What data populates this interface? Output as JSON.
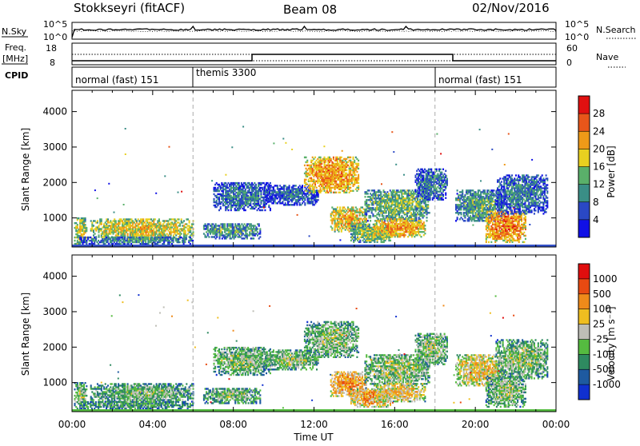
{
  "header": {
    "station": "Stokkseyri (fitACF)",
    "beam": "Beam 08",
    "date": "02/Nov/2016"
  },
  "left_labels": {
    "nsky": "N.Sky",
    "freq_line1": "Freq.",
    "freq_line2": "[MHz]",
    "cpid": "CPID"
  },
  "right_labels": {
    "nsearch": "N.Search",
    "nave": "Nave"
  },
  "noise_ticks": {
    "left_top": "10^5",
    "left_bottom": "10^0",
    "right_top": "10^5",
    "right_bottom": "10^0"
  },
  "freq_ticks": {
    "left_top": "18",
    "left_bottom": "8",
    "right_top": "60",
    "right_bottom": "0"
  },
  "cpid_segments": [
    {
      "label": "normal (fast) 151",
      "start_h": 0,
      "end_h": 6
    },
    {
      "label": "themis 3300",
      "start_h": 6,
      "end_h": 18
    },
    {
      "label": "normal (fast) 151",
      "start_h": 18,
      "end_h": 24
    }
  ],
  "x_axis": {
    "label": "Time UT",
    "ticks": [
      "00:00",
      "04:00",
      "08:00",
      "12:00",
      "16:00",
      "20:00",
      "00:00"
    ],
    "range_h": [
      0,
      24
    ]
  },
  "chart_data": [
    {
      "type": "heatmap",
      "name": "power",
      "ylabel": "Slant Range [km]",
      "y_ticks": [
        "1000",
        "2000",
        "3000",
        "4000"
      ],
      "ylim": [
        180,
        4600
      ],
      "colorbar": {
        "label": "Power [dB]",
        "ticks": [
          "4",
          "8",
          "12",
          "16",
          "20",
          "24",
          "28"
        ],
        "colors": [
          "#1010e6",
          "#2a48c4",
          "#3a8e86",
          "#5ab06a",
          "#e8d020",
          "#ef9a18",
          "#e8561a",
          "#e01010"
        ]
      },
      "regions": [
        {
          "t": [
            0.1,
            0.7
          ],
          "r": [
            250,
            1000
          ],
          "v": 0.55
        },
        {
          "t": [
            0.9,
            6.0
          ],
          "r": [
            400,
            950
          ],
          "v": 0.6
        },
        {
          "t": [
            0.3,
            6.0
          ],
          "r": [
            250,
            450
          ],
          "v": 0.35
        },
        {
          "t": [
            6.5,
            9.3
          ],
          "r": [
            400,
            850
          ],
          "v": 0.4
        },
        {
          "t": [
            7.0,
            9.8
          ],
          "r": [
            1200,
            2000
          ],
          "v": 0.3
        },
        {
          "t": [
            9.5,
            12.2
          ],
          "r": [
            1350,
            1900
          ],
          "v": 0.25
        },
        {
          "t": [
            11.5,
            14.2
          ],
          "r": [
            1700,
            2700
          ],
          "v": 0.72
        },
        {
          "t": [
            12.8,
            14.6
          ],
          "r": [
            600,
            1300
          ],
          "v": 0.65
        },
        {
          "t": [
            13.8,
            15.8
          ],
          "r": [
            300,
            800
          ],
          "v": 0.5
        },
        {
          "t": [
            14.5,
            17.7
          ],
          "r": [
            900,
            1800
          ],
          "v": 0.45
        },
        {
          "t": [
            15.0,
            17.5
          ],
          "r": [
            450,
            950
          ],
          "v": 0.7
        },
        {
          "t": [
            17.0,
            18.6
          ],
          "r": [
            1500,
            2400
          ],
          "v": 0.3
        },
        {
          "t": [
            19.0,
            21.4
          ],
          "r": [
            900,
            1800
          ],
          "v": 0.4
        },
        {
          "t": [
            20.5,
            22.5
          ],
          "r": [
            300,
            1200
          ],
          "v": 0.75
        },
        {
          "t": [
            21.0,
            23.6
          ],
          "r": [
            1100,
            2200
          ],
          "v": 0.3
        }
      ]
    },
    {
      "type": "heatmap",
      "name": "velocity",
      "ylabel": "Slant Range [km]",
      "y_ticks": [
        "1000",
        "2000",
        "3000",
        "4000"
      ],
      "ylim": [
        180,
        4600
      ],
      "colorbar": {
        "label": "Velocity [m s⁻¹]",
        "ticks": [
          "1000",
          "500",
          "100",
          "25",
          "-25",
          "-100",
          "-500",
          "-1000"
        ],
        "colors": [
          "#1030d0",
          "#1e5aa0",
          "#2e8a60",
          "#55bb40",
          "#bebeb6",
          "#efbe20",
          "#ef8a1a",
          "#e84a12",
          "#e00e0e"
        ]
      },
      "regions": [
        {
          "t": [
            0.1,
            0.7
          ],
          "r": [
            250,
            1000
          ],
          "v": 0.45
        },
        {
          "t": [
            0.9,
            6.0
          ],
          "r": [
            400,
            950
          ],
          "v": 0.42
        },
        {
          "t": [
            0.3,
            6.0
          ],
          "r": [
            250,
            450
          ],
          "v": 0.35
        },
        {
          "t": [
            6.5,
            9.3
          ],
          "r": [
            400,
            850
          ],
          "v": 0.42
        },
        {
          "t": [
            7.0,
            9.8
          ],
          "r": [
            1200,
            2000
          ],
          "v": 0.45
        },
        {
          "t": [
            9.5,
            12.2
          ],
          "r": [
            1350,
            1900
          ],
          "v": 0.45
        },
        {
          "t": [
            11.5,
            14.2
          ],
          "r": [
            1700,
            2700
          ],
          "v": 0.45
        },
        {
          "t": [
            12.8,
            14.6
          ],
          "r": [
            600,
            1300
          ],
          "v": 0.72
        },
        {
          "t": [
            13.8,
            15.8
          ],
          "r": [
            300,
            800
          ],
          "v": 0.68
        },
        {
          "t": [
            14.5,
            17.7
          ],
          "r": [
            900,
            1800
          ],
          "v": 0.47
        },
        {
          "t": [
            15.0,
            17.5
          ],
          "r": [
            450,
            950
          ],
          "v": 0.62
        },
        {
          "t": [
            17.0,
            18.6
          ],
          "r": [
            1500,
            2400
          ],
          "v": 0.45
        },
        {
          "t": [
            19.0,
            21.4
          ],
          "r": [
            900,
            1800
          ],
          "v": 0.6
        },
        {
          "t": [
            20.5,
            22.5
          ],
          "r": [
            300,
            1200
          ],
          "v": 0.45
        },
        {
          "t": [
            21.0,
            23.6
          ],
          "r": [
            1100,
            2200
          ],
          "v": 0.45
        }
      ]
    }
  ]
}
